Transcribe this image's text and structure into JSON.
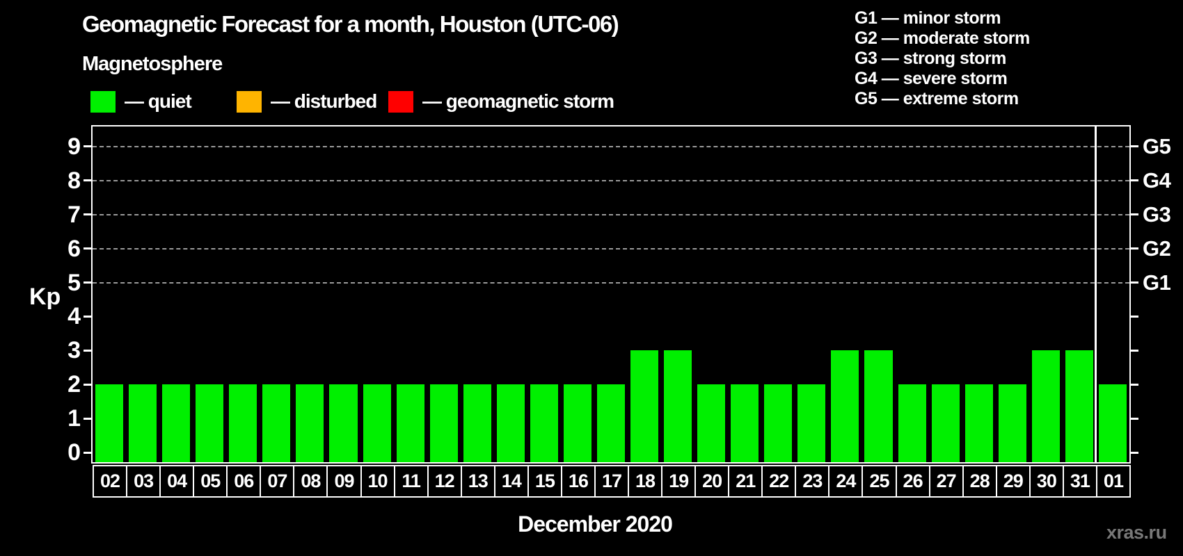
{
  "title": "Geomagnetic Forecast for a month, Houston (UTC-06)",
  "subtitle": "Magnetosphere",
  "legend": {
    "items": [
      {
        "key": "quiet",
        "label": "— quiet",
        "color": "#00f000"
      },
      {
        "key": "disturbed",
        "label": "— disturbed",
        "color": "#ffb400"
      },
      {
        "key": "storm",
        "label": "— geomagnetic storm",
        "color": "#ff0000"
      }
    ]
  },
  "g_legend": {
    "items": [
      {
        "label": "G1 — minor storm"
      },
      {
        "label": "G2 — moderate storm"
      },
      {
        "label": "G3 — strong storm"
      },
      {
        "label": "G4 — severe storm"
      },
      {
        "label": "G5 — extreme storm"
      }
    ]
  },
  "chart_data": {
    "type": "bar",
    "title": "Geomagnetic Forecast for a month, Houston (UTC-06)",
    "ylabel": "Kp",
    "xlabel": "December 2020",
    "ylim": [
      0,
      9.6
    ],
    "yticks": [
      0,
      1,
      2,
      3,
      4,
      5,
      6,
      7,
      8,
      9
    ],
    "grid": "dashed horizontal at Kp 5-9",
    "grid_levels": [
      5,
      6,
      7,
      8,
      9
    ],
    "right_axis": [
      {
        "kp": 5,
        "label": "G1"
      },
      {
        "kp": 6,
        "label": "G2"
      },
      {
        "kp": 7,
        "label": "G3"
      },
      {
        "kp": 8,
        "label": "G4"
      },
      {
        "kp": 9,
        "label": "G5"
      }
    ],
    "categories": [
      "02",
      "03",
      "04",
      "05",
      "06",
      "07",
      "08",
      "09",
      "10",
      "11",
      "12",
      "13",
      "14",
      "15",
      "16",
      "17",
      "18",
      "19",
      "20",
      "21",
      "22",
      "23",
      "24",
      "25",
      "26",
      "27",
      "28",
      "29",
      "30",
      "31",
      "01"
    ],
    "values": [
      2,
      2,
      2,
      2,
      2,
      2,
      2,
      2,
      2,
      2,
      2,
      2,
      2,
      2,
      2,
      2,
      3,
      3,
      2,
      2,
      2,
      2,
      3,
      3,
      2,
      2,
      2,
      2,
      3,
      3,
      2
    ],
    "month_separator_before_index": 30,
    "legend_position": "top-left"
  },
  "footer": {
    "watermark": "xras.ru"
  },
  "colors": {
    "background": "#000000",
    "text": "#ffffff",
    "frame": "#ffffff",
    "grid": "#9b9b9b",
    "quiet": "#00f000",
    "disturbed": "#ffb400",
    "storm": "#ff0000",
    "watermark": "#787878"
  }
}
